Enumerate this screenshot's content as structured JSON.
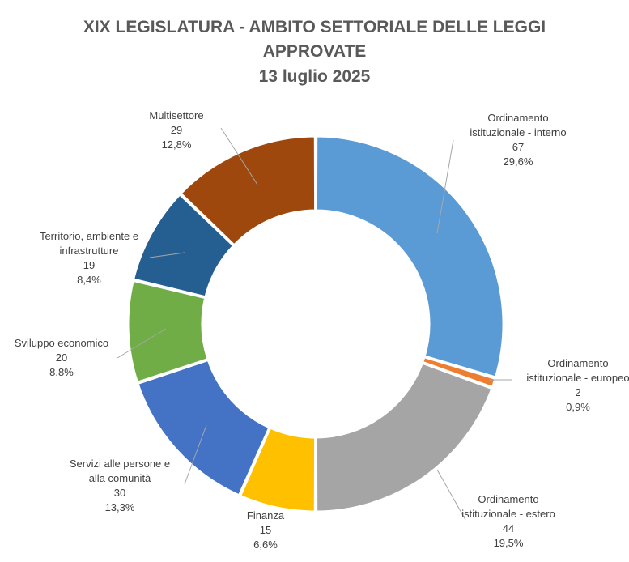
{
  "chart_data": {
    "type": "pie",
    "variant": "donut",
    "title_lines": [
      "XIX LEGISLATURA - AMBITO SETTORIALE DELLE LEGGI",
      "APPROVATE",
      "13 luglio 2025"
    ],
    "slices": [
      {
        "name_lines": [
          "Ordinamento",
          "istituzionale - interno"
        ],
        "value": 67,
        "percent": "29,6%",
        "color": "#5B9BD5"
      },
      {
        "name_lines": [
          "Ordinamento",
          "istituzionale - europeo"
        ],
        "value": 2,
        "percent": "0,9%",
        "color": "#ED7D31"
      },
      {
        "name_lines": [
          "Ordinamento",
          "istituzionale - estero"
        ],
        "value": 44,
        "percent": "19,5%",
        "color": "#A5A5A5"
      },
      {
        "name_lines": [
          "Finanza"
        ],
        "value": 15,
        "percent": "6,6%",
        "color": "#FFC000"
      },
      {
        "name_lines": [
          "Servizi alle persone e",
          "alla comunità"
        ],
        "value": 30,
        "percent": "13,3%",
        "color": "#4472C4"
      },
      {
        "name_lines": [
          "Sviluppo economico"
        ],
        "value": 20,
        "percent": "8,8%",
        "color": "#70AD47"
      },
      {
        "name_lines": [
          "Territorio, ambiente e",
          "infrastrutture"
        ],
        "value": 19,
        "percent": "8,4%",
        "color": "#255E91"
      },
      {
        "name_lines": [
          "Multisettore"
        ],
        "value": 29,
        "percent": "12,8%",
        "color": "#9E480E"
      }
    ],
    "legend": "none",
    "data_labels": "outside-with-leader-lines"
  }
}
